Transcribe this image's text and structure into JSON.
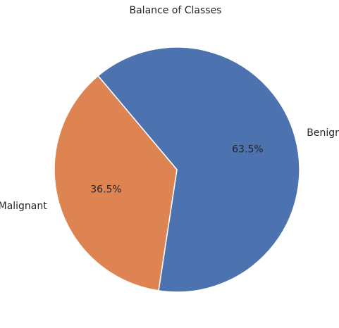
{
  "chart_data": {
    "type": "pie",
    "title": "Balance of Classes",
    "slices": [
      {
        "label": "Benign",
        "value": 63.5,
        "pct_label": "63.5%",
        "color": "#4c72b0"
      },
      {
        "label": "Malignant",
        "value": 36.5,
        "pct_label": "36.5%",
        "color": "#dd8452"
      }
    ]
  }
}
